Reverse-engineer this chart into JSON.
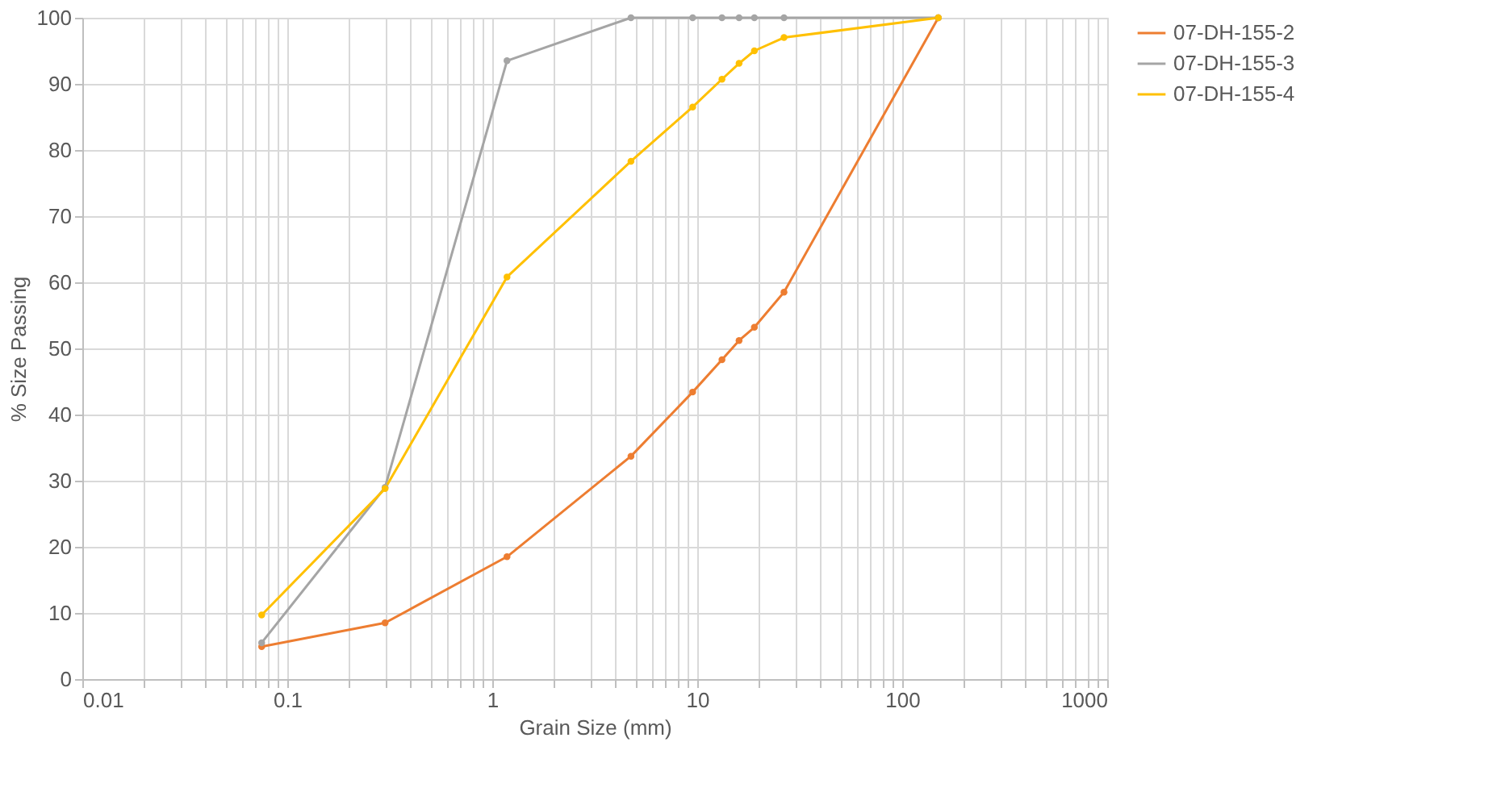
{
  "chart_data": {
    "type": "line",
    "xlabel": "Grain Size (mm)",
    "ylabel": "% Size Passing",
    "log": "x",
    "grid": true,
    "legend": "right",
    "marker": "circle",
    "line_style": "solid",
    "x": [
      0.075,
      0.3,
      1.18,
      4.75,
      9.5,
      13.2,
      16,
      19,
      26.5,
      150
    ],
    "xlim": [
      0.01,
      1000
    ],
    "ylim": [
      0,
      100
    ],
    "xticks": [
      0.01,
      {
        "value": 0.02,
        "label": null
      },
      {
        "value": 0.03,
        "label": null
      },
      {
        "value": 0.04,
        "label": null
      },
      {
        "value": 0.05,
        "label": null
      },
      {
        "value": 0.06,
        "label": null
      },
      {
        "value": 0.07,
        "label": null
      },
      {
        "value": 0.08,
        "label": null
      },
      {
        "value": 0.09,
        "label": null
      },
      0.1,
      {
        "value": 0.2,
        "label": null
      },
      {
        "value": 0.3,
        "label": null
      },
      {
        "value": 0.4,
        "label": null
      },
      {
        "value": 0.5,
        "label": null
      },
      {
        "value": 0.6,
        "label": null
      },
      {
        "value": 0.7,
        "label": null
      },
      {
        "value": 0.8,
        "label": null
      },
      {
        "value": 0.9,
        "label": null
      },
      1,
      {
        "value": 2,
        "label": null
      },
      {
        "value": 3,
        "label": null
      },
      {
        "value": 4,
        "label": null
      },
      {
        "value": 5,
        "label": null
      },
      {
        "value": 6,
        "label": null
      },
      {
        "value": 7,
        "label": null
      },
      {
        "value": 8,
        "label": null
      },
      {
        "value": 9,
        "label": null
      },
      10,
      {
        "value": 20,
        "label": null
      },
      {
        "value": 30,
        "label": null
      },
      {
        "value": 40,
        "label": null
      },
      {
        "value": 50,
        "label": null
      },
      {
        "value": 60,
        "label": null
      },
      {
        "value": 70,
        "label": null
      },
      {
        "value": 80,
        "label": null
      },
      {
        "value": 90,
        "label": null
      },
      100,
      {
        "value": 200,
        "label": null
      },
      {
        "value": 300,
        "label": null
      },
      {
        "value": 400,
        "label": null
      },
      {
        "value": 500,
        "label": null
      },
      {
        "value": 600,
        "label": null
      },
      {
        "value": 700,
        "label": null
      },
      {
        "value": 800,
        "label": null
      },
      {
        "value": 900,
        "label": null
      },
      1000
    ],
    "yticks": [
      0,
      10,
      20,
      30,
      40,
      50,
      60,
      70,
      80,
      90,
      100
    ],
    "series": [
      {
        "name": "07-DH-155-2",
        "color": "#ed7d31",
        "values": [
          4.9,
          8.5,
          18.5,
          33.7,
          43.4,
          48.3,
          51.2,
          53.2,
          58.5,
          100
        ]
      },
      {
        "name": "07-DH-155-3",
        "color": "#a5a5a5",
        "values": [
          5.5,
          29,
          93.5,
          100,
          100,
          100,
          100,
          100,
          100,
          100
        ]
      },
      {
        "name": "07-DH-155-4",
        "color": "#ffc000",
        "values": [
          9.7,
          28.8,
          60.8,
          78.3,
          86.5,
          90.7,
          93.1,
          95,
          97,
          100
        ]
      }
    ]
  }
}
